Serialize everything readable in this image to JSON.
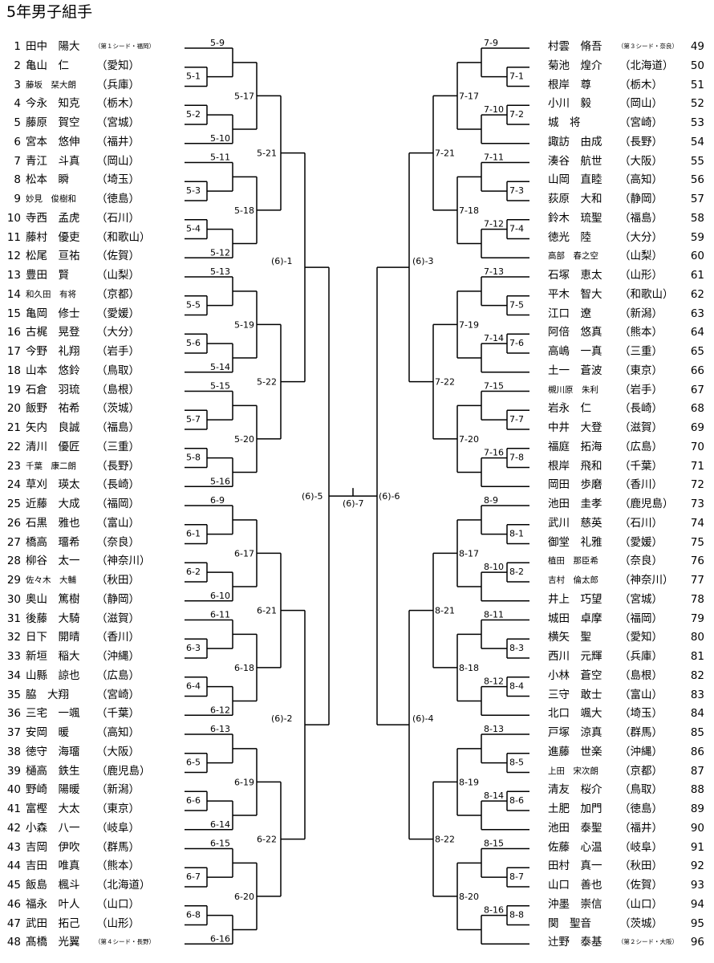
{
  "title": "5年男子組手",
  "left_entries": [
    {
      "no": "1",
      "name": "田中　陽大",
      "pref": "",
      "seed": "（第１シード・福岡）"
    },
    {
      "no": "2",
      "name": "亀山　仁",
      "pref": "（愛知）"
    },
    {
      "no": "3",
      "name": "藤坂　栞大朗",
      "pref": "（兵庫）",
      "small": true
    },
    {
      "no": "4",
      "name": "今永　知克",
      "pref": "（栃木）"
    },
    {
      "no": "5",
      "name": "藤原　賀空",
      "pref": "（宮城）"
    },
    {
      "no": "6",
      "name": "宮本　悠伸",
      "pref": "（福井）"
    },
    {
      "no": "7",
      "name": "青江　斗真",
      "pref": "（岡山）"
    },
    {
      "no": "8",
      "name": "松本　瞬",
      "pref": "（埼玉）"
    },
    {
      "no": "9",
      "name": "妙見　俊樹和",
      "pref": "（徳島）",
      "small": true
    },
    {
      "no": "10",
      "name": "寺西　孟虎",
      "pref": "（石川）"
    },
    {
      "no": "11",
      "name": "藤村　優吏",
      "pref": "（和歌山）"
    },
    {
      "no": "12",
      "name": "松尾　亘祐",
      "pref": "（佐賀）"
    },
    {
      "no": "13",
      "name": "豊田　賢",
      "pref": "（山梨）"
    },
    {
      "no": "14",
      "name": "和久田　有将",
      "pref": "（京都）",
      "small": true
    },
    {
      "no": "15",
      "name": "亀岡　修士",
      "pref": "（愛媛）"
    },
    {
      "no": "16",
      "name": "古梶　晃登",
      "pref": "（大分）"
    },
    {
      "no": "17",
      "name": "今野　礼翔",
      "pref": "（岩手）"
    },
    {
      "no": "18",
      "name": "山本　悠鈴",
      "pref": "（鳥取）"
    },
    {
      "no": "19",
      "name": "石倉　羽琉",
      "pref": "（島根）"
    },
    {
      "no": "20",
      "name": "飯野　祐希",
      "pref": "（茨城）"
    },
    {
      "no": "21",
      "name": "矢内　良誠",
      "pref": "（福島）"
    },
    {
      "no": "22",
      "name": "清川　優匠",
      "pref": "（三重）"
    },
    {
      "no": "23",
      "name": "千葉　康二朗",
      "pref": "（長野）",
      "small": true
    },
    {
      "no": "24",
      "name": "草刈　瑛太",
      "pref": "（長崎）"
    },
    {
      "no": "25",
      "name": "近藤　大成",
      "pref": "（福岡）"
    },
    {
      "no": "26",
      "name": "石黒　雅也",
      "pref": "（富山）"
    },
    {
      "no": "27",
      "name": "橋高　璢希",
      "pref": "（奈良）"
    },
    {
      "no": "28",
      "name": "柳谷　太一",
      "pref": "（神奈川）"
    },
    {
      "no": "29",
      "name": "佐々木　大輔",
      "pref": "（秋田）",
      "small": true
    },
    {
      "no": "30",
      "name": "奥山　篤樹",
      "pref": "（静岡）"
    },
    {
      "no": "31",
      "name": "後藤　大騎",
      "pref": "（滋賀）"
    },
    {
      "no": "32",
      "name": "日下　開晴",
      "pref": "（香川）"
    },
    {
      "no": "33",
      "name": "新垣　稲大",
      "pref": "（沖縄）"
    },
    {
      "no": "34",
      "name": "山縣　諒也",
      "pref": "（広島）"
    },
    {
      "no": "35",
      "name": "脇　大翔",
      "pref": "（宮崎）"
    },
    {
      "no": "36",
      "name": "三宅　一颯",
      "pref": "（千葉）"
    },
    {
      "no": "37",
      "name": "安岡　暖",
      "pref": "（高知）"
    },
    {
      "no": "38",
      "name": "徳守　海璢",
      "pref": "（大阪）"
    },
    {
      "no": "39",
      "name": "樋高　鉄生",
      "pref": "（鹿児島）"
    },
    {
      "no": "40",
      "name": "野崎　陽暖",
      "pref": "（新潟）"
    },
    {
      "no": "41",
      "name": "富樫　大太",
      "pref": "（東京）"
    },
    {
      "no": "42",
      "name": "小森　八一",
      "pref": "（岐阜）"
    },
    {
      "no": "43",
      "name": "吉岡　伊吹",
      "pref": "（群馬）"
    },
    {
      "no": "44",
      "name": "吉田　唯真",
      "pref": "（熊本）"
    },
    {
      "no": "45",
      "name": "飯島　楓斗",
      "pref": "（北海道）"
    },
    {
      "no": "46",
      "name": "福永　叶人",
      "pref": "（山口）"
    },
    {
      "no": "47",
      "name": "武田　拓己",
      "pref": "（山形）"
    },
    {
      "no": "48",
      "name": "髙橋　光翼",
      "pref": "",
      "seed": "（第４シード・長野）"
    }
  ],
  "right_entries": [
    {
      "no": "49",
      "name": "村雲　脩吾",
      "pref": "",
      "seed": "（第３シード・奈良）"
    },
    {
      "no": "50",
      "name": "菊池　煌介",
      "pref": "（北海道）"
    },
    {
      "no": "51",
      "name": "根岸　尊",
      "pref": "（栃木）"
    },
    {
      "no": "52",
      "name": "小川　毅",
      "pref": "（岡山）"
    },
    {
      "no": "53",
      "name": "城　将",
      "pref": "（宮崎）"
    },
    {
      "no": "54",
      "name": "諏訪　由成",
      "pref": "（長野）"
    },
    {
      "no": "55",
      "name": "湊谷　航世",
      "pref": "（大阪）"
    },
    {
      "no": "56",
      "name": "山岡　直睦",
      "pref": "（高知）"
    },
    {
      "no": "57",
      "name": "荻原　大和",
      "pref": "（静岡）"
    },
    {
      "no": "58",
      "name": "鈴木　琉聖",
      "pref": "（福島）"
    },
    {
      "no": "59",
      "name": "徳光　陸",
      "pref": "（大分）"
    },
    {
      "no": "60",
      "name": "高部　春之空",
      "pref": "（山梨）",
      "small": true
    },
    {
      "no": "61",
      "name": "石塚　恵太",
      "pref": "（山形）"
    },
    {
      "no": "62",
      "name": "平木　智大",
      "pref": "（和歌山）"
    },
    {
      "no": "63",
      "name": "江口　遼",
      "pref": "（新潟）"
    },
    {
      "no": "64",
      "name": "阿倍　悠真",
      "pref": "（熊本）"
    },
    {
      "no": "65",
      "name": "高嶋　一真",
      "pref": "（三重）"
    },
    {
      "no": "66",
      "name": "土一　蒼波",
      "pref": "（東京）"
    },
    {
      "no": "67",
      "name": "槻川原　朱利",
      "pref": "（岩手）",
      "small": true
    },
    {
      "no": "68",
      "name": "岩永　仁",
      "pref": "（長崎）"
    },
    {
      "no": "69",
      "name": "中井　大登",
      "pref": "（滋賀）"
    },
    {
      "no": "70",
      "name": "福庭　拓海",
      "pref": "（広島）"
    },
    {
      "no": "71",
      "name": "根岸　飛和",
      "pref": "（千葉）"
    },
    {
      "no": "72",
      "name": "岡田　歩磨",
      "pref": "（香川）"
    },
    {
      "no": "73",
      "name": "池田　圭孝",
      "pref": "（鹿児島）"
    },
    {
      "no": "74",
      "name": "武川　慈英",
      "pref": "（石川）"
    },
    {
      "no": "75",
      "name": "御堂　礼雅",
      "pref": "（愛媛）"
    },
    {
      "no": "76",
      "name": "植田　那臣希",
      "pref": "（奈良）",
      "small": true
    },
    {
      "no": "77",
      "name": "吉村　倫太郎",
      "pref": "（神奈川）",
      "small": true
    },
    {
      "no": "78",
      "name": "井上　巧望",
      "pref": "（宮城）"
    },
    {
      "no": "79",
      "name": "城田　卓摩",
      "pref": "（福岡）"
    },
    {
      "no": "80",
      "name": "横矢　聖",
      "pref": "（愛知）"
    },
    {
      "no": "81",
      "name": "西川　元輝",
      "pref": "（兵庫）"
    },
    {
      "no": "82",
      "name": "小林　蒼空",
      "pref": "（島根）"
    },
    {
      "no": "83",
      "name": "三守　敢士",
      "pref": "（富山）"
    },
    {
      "no": "84",
      "name": "北口　颯大",
      "pref": "（埼玉）"
    },
    {
      "no": "85",
      "name": "戸塚　涼真",
      "pref": "（群馬）"
    },
    {
      "no": "86",
      "name": "進藤　世楽",
      "pref": "（沖縄）"
    },
    {
      "no": "87",
      "name": "上田　宋次朗",
      "pref": "（京都）",
      "small": true
    },
    {
      "no": "88",
      "name": "清友　桜介",
      "pref": "（鳥取）"
    },
    {
      "no": "89",
      "name": "土肥　加門",
      "pref": "（徳島）"
    },
    {
      "no": "90",
      "name": "池田　泰聖",
      "pref": "（福井）"
    },
    {
      "no": "91",
      "name": "佐藤　心温",
      "pref": "（岐阜）"
    },
    {
      "no": "92",
      "name": "田村　真一",
      "pref": "（秋田）"
    },
    {
      "no": "93",
      "name": "山口　善也",
      "pref": "（佐賀）"
    },
    {
      "no": "94",
      "name": "沖墨　崇信",
      "pref": "（山口）"
    },
    {
      "no": "95",
      "name": "関　聖音",
      "pref": "（茨城）"
    },
    {
      "no": "96",
      "name": "辻野　泰基",
      "pref": "",
      "seed": "（第２シード・大阪）"
    }
  ],
  "match_labels": {
    "pool5": [
      "5-1",
      "5-2",
      "5-3",
      "5-4",
      "5-5",
      "5-6",
      "5-7",
      "5-8",
      "5-9",
      "5-10",
      "5-11",
      "5-12",
      "5-13",
      "5-14",
      "5-15",
      "5-16",
      "5-17",
      "5-18",
      "5-19",
      "5-20",
      "5-21",
      "5-22"
    ],
    "pool6": [
      "6-1",
      "6-2",
      "6-3",
      "6-4",
      "6-5",
      "6-6",
      "6-7",
      "6-8",
      "6-9",
      "6-10",
      "6-11",
      "6-12",
      "6-13",
      "6-14",
      "6-15",
      "6-16",
      "6-17",
      "6-18",
      "6-19",
      "6-20",
      "6-21",
      "6-22"
    ],
    "pool7": [
      "7-1",
      "7-2",
      "7-3",
      "7-4",
      "7-5",
      "7-6",
      "7-7",
      "7-8",
      "7-9",
      "7-10",
      "7-11",
      "7-12",
      "7-13",
      "7-14",
      "7-15",
      "7-16",
      "7-17",
      "7-18",
      "7-19",
      "7-20",
      "7-21",
      "7-22"
    ],
    "pool8": [
      "8-1",
      "8-2",
      "8-3",
      "8-4",
      "8-5",
      "8-6",
      "8-7",
      "8-8",
      "8-9",
      "8-10",
      "8-11",
      "8-12",
      "8-13",
      "8-14",
      "8-15",
      "8-16",
      "8-17",
      "8-18",
      "8-19",
      "8-20",
      "8-21",
      "8-22"
    ],
    "quarter": [
      "(6)-1",
      "(6)-2",
      "(6)-3",
      "(6)-4"
    ],
    "semi": [
      "(6)-5",
      "(6)-6"
    ],
    "final": "(6)-7"
  }
}
